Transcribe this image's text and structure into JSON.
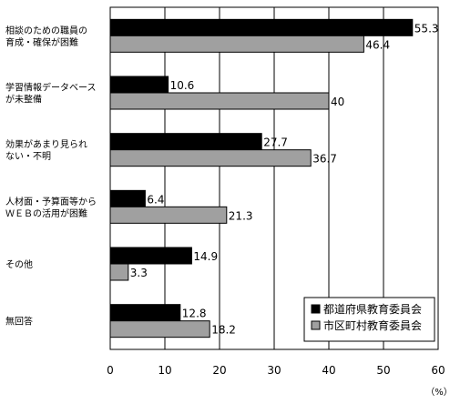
{
  "chart_data": {
    "type": "bar",
    "orientation": "horizontal",
    "categories": [
      [
        "相談のための職員の",
        "育成・確保が困難"
      ],
      [
        "学習情報データベース",
        "が未整備"
      ],
      [
        "効果があまり見られ",
        "ない・不明"
      ],
      [
        "人材面・予算面等から",
        "ＷＥＢの活用が困難"
      ],
      [
        "その他"
      ],
      [
        "無回答"
      ]
    ],
    "series": [
      {
        "name": "都道府県教育委員会",
        "color": "#000000",
        "values": [
          55.3,
          10.6,
          27.7,
          6.4,
          14.9,
          12.8
        ]
      },
      {
        "name": "市区町村教育委員会",
        "color": "#a0a0a0",
        "values": [
          46.4,
          40,
          36.7,
          21.3,
          3.3,
          18.2
        ]
      }
    ],
    "xlim": [
      0,
      60
    ],
    "xticks": [
      0,
      10,
      20,
      30,
      40,
      50,
      60
    ],
    "unit_label": "（%）",
    "grid": true,
    "legend_position": "bottom-right"
  }
}
